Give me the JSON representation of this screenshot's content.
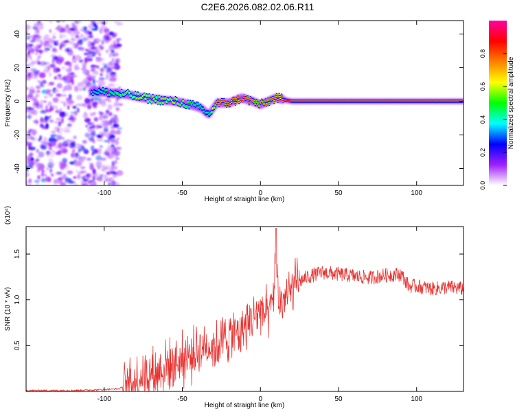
{
  "figure": {
    "title": "C2E6.2026.082.02.06.R11"
  },
  "chart_data": [
    {
      "type": "heatmap",
      "xlabel": "Height of straight line (km)",
      "ylabel": "Frequency (Hz)",
      "xlim": [
        -150,
        130
      ],
      "ylim": [
        -50,
        48
      ],
      "xticks": [
        -100,
        -50,
        0,
        50,
        100
      ],
      "yticks": [
        -40,
        -20,
        0,
        20,
        40
      ],
      "colorbar": {
        "label": "Normalized spectral amplitude",
        "range": [
          0,
          1
        ],
        "ticks": [
          "0.0",
          "0.2",
          "0.4",
          "0.6",
          "0.8"
        ],
        "colormap": [
          "#ffffff",
          "#a020ff",
          "#0000ff",
          "#00ffff",
          "#00ff00",
          "#ffff00",
          "#ff8000",
          "#ff0000",
          "#ff00a0"
        ]
      },
      "ridge": {
        "x": [
          -105,
          -95,
          -85,
          -75,
          -65,
          -55,
          -45,
          -38,
          -33,
          -28,
          -20,
          -12,
          -5,
          0,
          5,
          10,
          20,
          40,
          60,
          80,
          100,
          130
        ],
        "y": [
          6,
          5,
          4,
          2,
          1,
          0,
          -2,
          -4,
          -8,
          -1,
          -1,
          2,
          0,
          -2,
          0,
          2,
          0,
          0,
          0,
          0,
          0,
          0
        ],
        "peak_amplitude": [
          0.4,
          0.5,
          0.55,
          0.6,
          0.55,
          0.6,
          0.5,
          0.45,
          0.4,
          0.8,
          0.85,
          0.9,
          0.8,
          0.75,
          0.8,
          0.85,
          0.9,
          0.9,
          0.9,
          0.9,
          0.9,
          0.9
        ]
      },
      "noise_region": {
        "x": [
          -150,
          -90
        ],
        "amplitude": 0.2
      }
    },
    {
      "type": "line",
      "xlabel": "Height of straight line (km)",
      "ylabel": "SNR (10 * v/v)",
      "y_multiplier": "(x10⁴)",
      "xlim": [
        -150,
        130
      ],
      "ylim": [
        0,
        1.8
      ],
      "xticks": [
        -100,
        -50,
        0,
        50,
        100
      ],
      "yticks": [
        "0.5",
        "1.0",
        "1.5"
      ],
      "series": [
        {
          "color": "#e8312f",
          "x": [
            -150,
            -120,
            -100,
            -90,
            -85,
            -80,
            -75,
            -70,
            -65,
            -60,
            -55,
            -50,
            -45,
            -40,
            -35,
            -30,
            -25,
            -20,
            -15,
            -10,
            -5,
            0,
            5,
            8,
            10,
            12,
            15,
            20,
            25,
            30,
            40,
            50,
            60,
            70,
            80,
            90,
            95,
            100,
            110,
            120,
            130
          ],
          "y": [
            0.01,
            0.01,
            0.02,
            0.03,
            0.08,
            0.12,
            0.18,
            0.2,
            0.22,
            0.28,
            0.32,
            0.35,
            0.38,
            0.45,
            0.5,
            0.48,
            0.55,
            0.6,
            0.65,
            0.7,
            0.8,
            0.9,
            0.8,
            1.0,
            1.5,
            0.95,
            1.0,
            1.1,
            1.2,
            1.25,
            1.3,
            1.28,
            1.26,
            1.24,
            1.27,
            1.28,
            1.15,
            1.15,
            1.12,
            1.14,
            1.12
          ],
          "noise_amplitude": 0.08
        }
      ]
    }
  ]
}
